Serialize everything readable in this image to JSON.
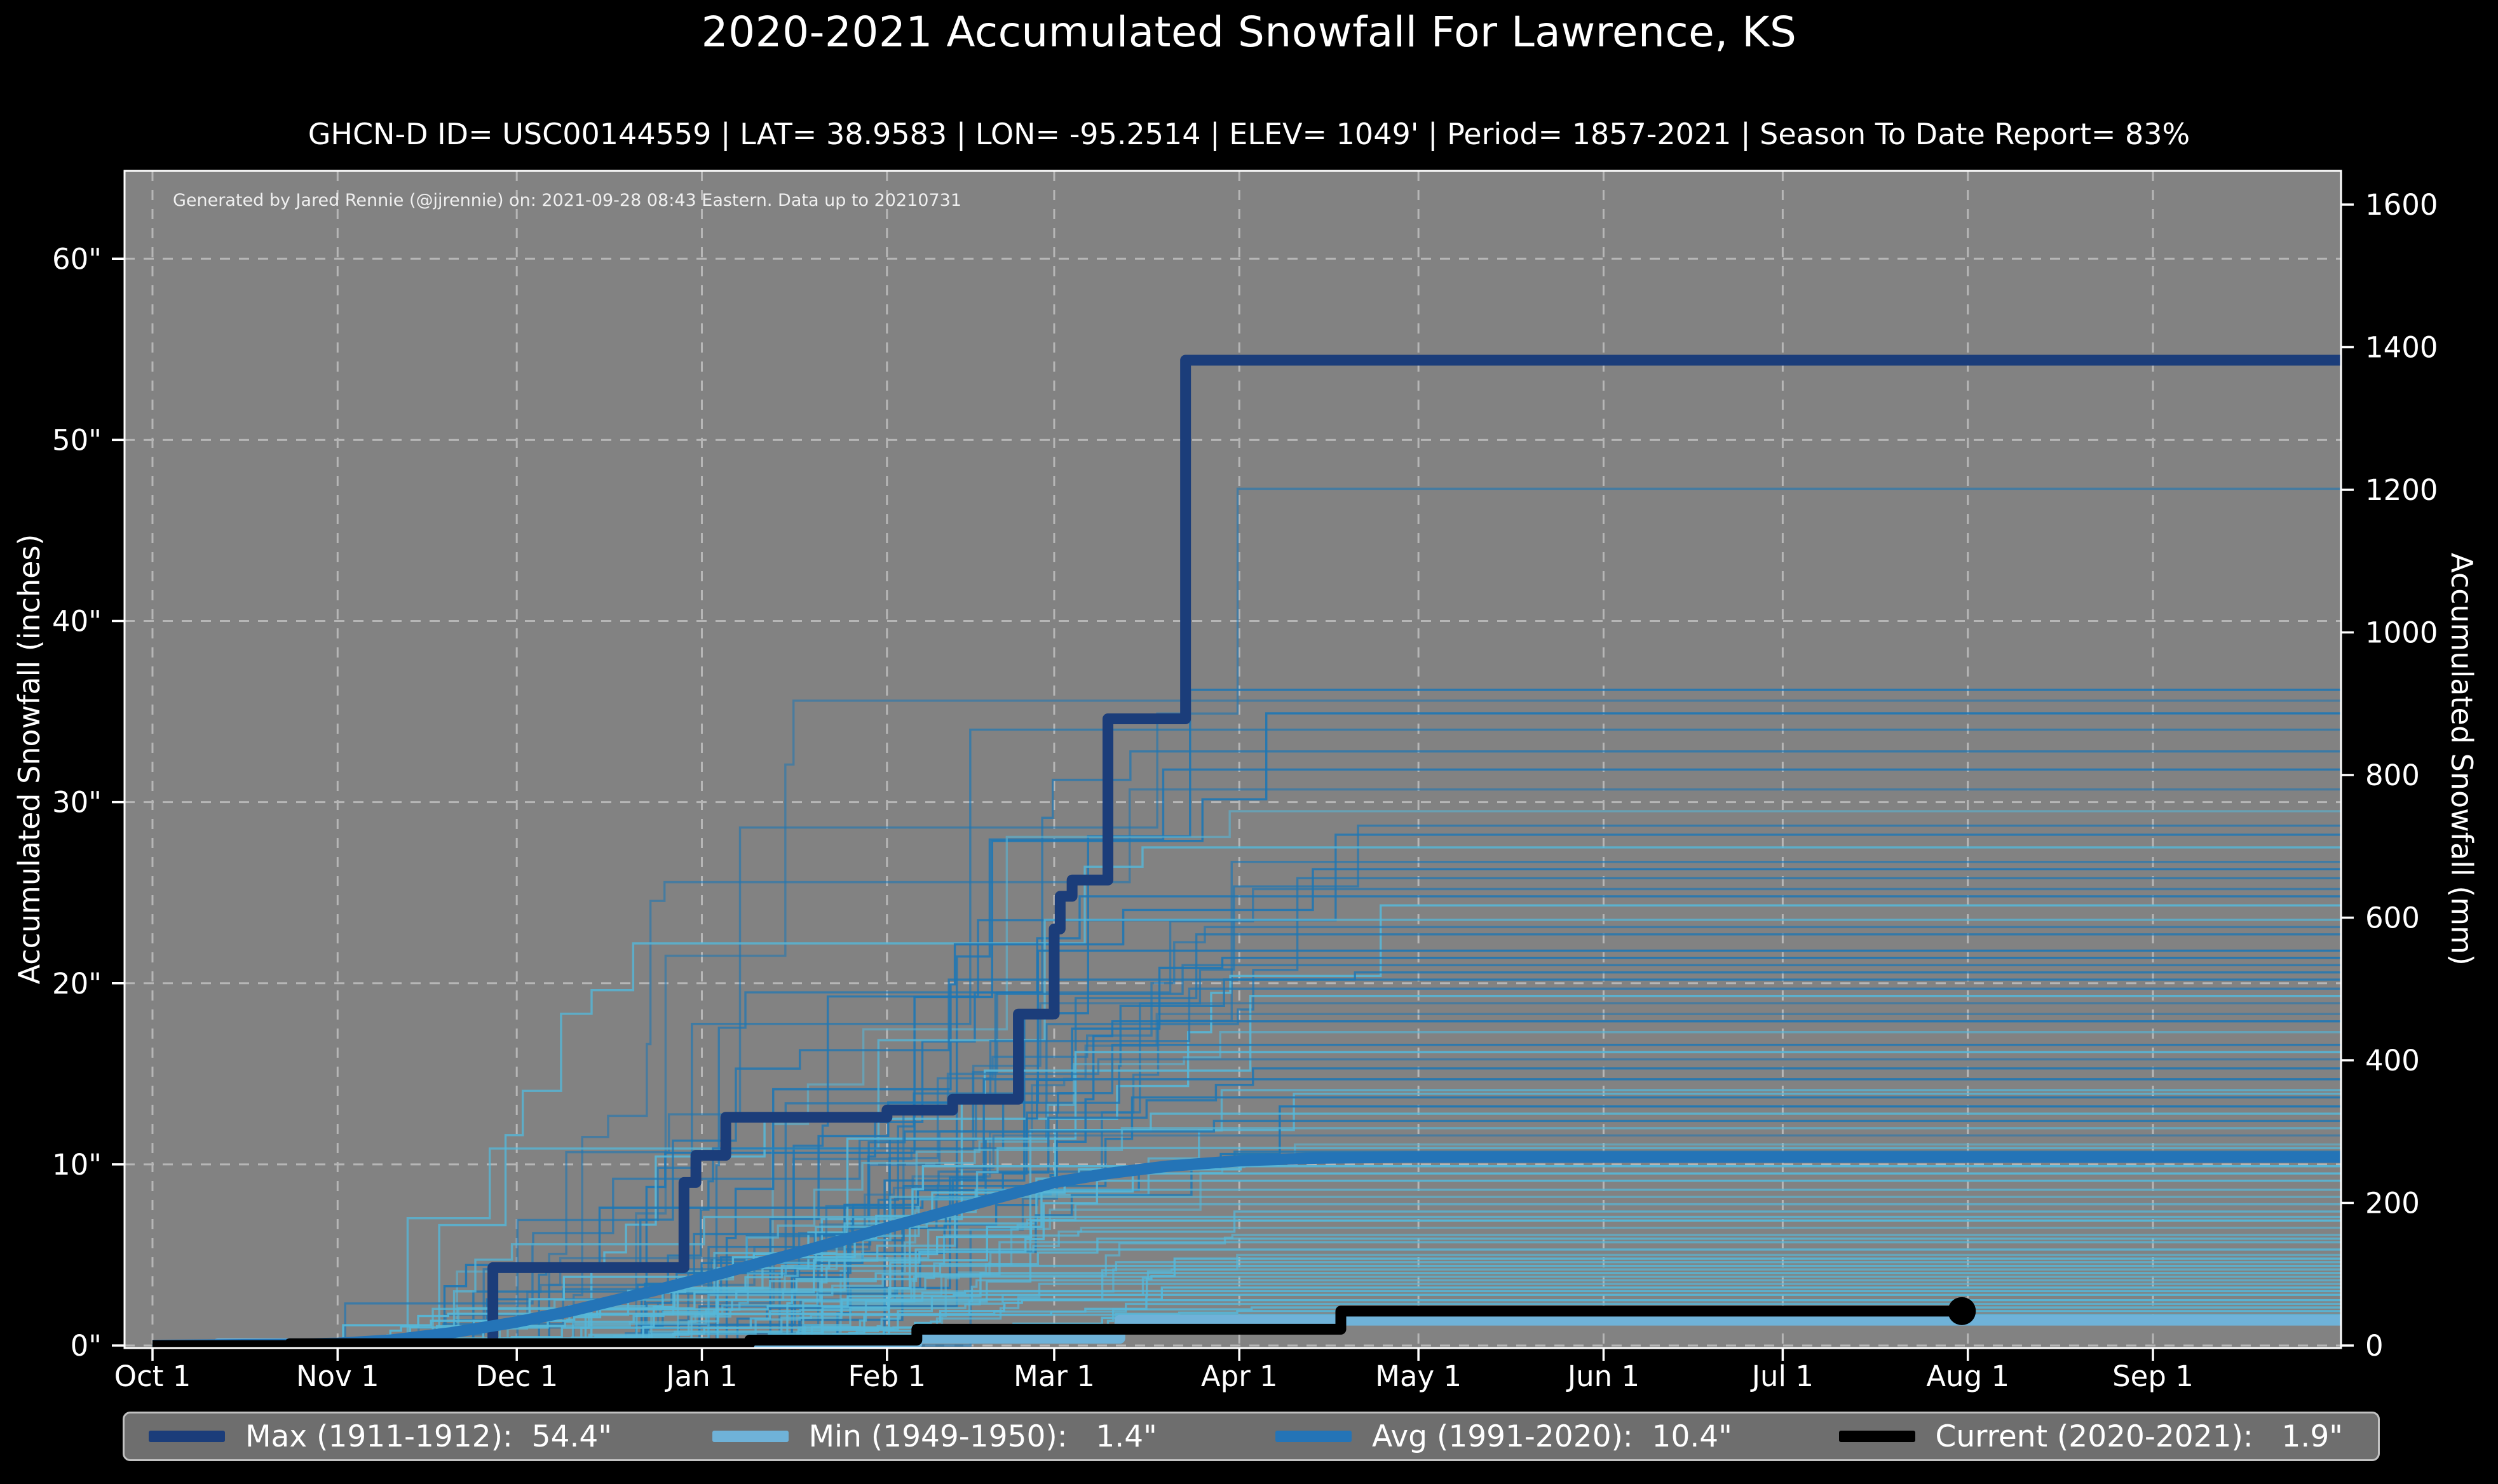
{
  "title": "2020-2021 Accumulated Snowfall For Lawrence, KS",
  "subtitle": "GHCN-D ID= USC00144559 | LAT= 38.9583 | LON= -95.2514 | ELEV= 1049' | Period= 1857-2021 | Season To Date Report= 83%",
  "attribution": "Generated by Jared Rennie (@jjrennie) on: 2021-09-28 08:43 Eastern. Data up to 20210731",
  "colors": {
    "figure_bg": "#000000",
    "plot_bg": "#828282",
    "grid": "#cccccc",
    "spine": "#ffffff",
    "tick": "#ffffff",
    "text": "#ffffff",
    "max": "#1b3d7a",
    "min": "#6fb2d8",
    "avg": "#2474b7",
    "current": "#000000",
    "bg_dark": "#1f77b4",
    "bg_light": "#56b7d8",
    "legend_bg": "#6e6e6e",
    "legend_border": "#c2c2c2"
  },
  "axes": {
    "left_label": "Accumulated Snowfall (inches)",
    "right_label": "Accumulated Snowfall (mm)",
    "xlim_days": [
      -4.68,
      366.5
    ],
    "ylim_inches": [
      -0.14,
      64.85
    ],
    "grid": "on",
    "x_ticks": [
      {
        "label": "Oct 1",
        "day": 0
      },
      {
        "label": "Nov 1",
        "day": 31
      },
      {
        "label": "Dec 1",
        "day": 61
      },
      {
        "label": "Jan 1",
        "day": 92
      },
      {
        "label": "Feb 1",
        "day": 123
      },
      {
        "label": "Mar 1",
        "day": 151
      },
      {
        "label": "Apr 1",
        "day": 182
      },
      {
        "label": "May 1",
        "day": 212
      },
      {
        "label": "Jun 1",
        "day": 243
      },
      {
        "label": "Jul 1",
        "day": 273
      },
      {
        "label": "Aug 1",
        "day": 304
      },
      {
        "label": "Sep 1",
        "day": 335
      }
    ],
    "y_ticks_inches": [
      {
        "label": "0\"",
        "value": 0
      },
      {
        "label": "10\"",
        "value": 10
      },
      {
        "label": "20\"",
        "value": 20
      },
      {
        "label": "30\"",
        "value": 30
      },
      {
        "label": "40\"",
        "value": 40
      },
      {
        "label": "50\"",
        "value": 50
      },
      {
        "label": "60\"",
        "value": 60
      }
    ],
    "y_ticks_mm": [
      {
        "label": "0",
        "value": 0
      },
      {
        "label": "200",
        "value": 200
      },
      {
        "label": "400",
        "value": 400
      },
      {
        "label": "600",
        "value": 600
      },
      {
        "label": "800",
        "value": 800
      },
      {
        "label": "1000",
        "value": 1000
      },
      {
        "label": "1200",
        "value": 1200
      },
      {
        "label": "1400",
        "value": 1400
      },
      {
        "label": "1600",
        "value": 1600
      }
    ]
  },
  "chart_data": {
    "type": "line",
    "x_unit": "day of snow season (day 0 = Oct 1, day 364 = Sep 30)",
    "y_unit_left": "inches",
    "y_unit_right": "mm",
    "series": [
      {
        "name": "Max (1911-1912)",
        "season_total_inches": 54.4,
        "color_key": "max",
        "width": 17,
        "step": true,
        "points": [
          [
            0,
            0
          ],
          [
            57,
            0
          ],
          [
            57,
            4.3
          ],
          [
            89,
            4.3
          ],
          [
            89,
            9.0
          ],
          [
            91,
            9.0
          ],
          [
            91,
            10.5
          ],
          [
            96,
            10.5
          ],
          [
            96,
            12.6
          ],
          [
            123,
            12.6
          ],
          [
            123,
            13.0
          ],
          [
            134,
            13.0
          ],
          [
            134,
            13.6
          ],
          [
            145,
            13.6
          ],
          [
            145,
            18.3
          ],
          [
            151,
            18.3
          ],
          [
            151,
            23.0
          ],
          [
            152,
            23.0
          ],
          [
            152,
            24.8
          ],
          [
            154,
            24.8
          ],
          [
            154,
            25.7
          ],
          [
            160,
            25.7
          ],
          [
            160,
            34.6
          ],
          [
            173,
            34.6
          ],
          [
            173,
            54.4
          ],
          [
            367,
            54.4
          ]
        ]
      },
      {
        "name": "Min (1949-1950)",
        "season_total_inches": 1.4,
        "color_key": "min",
        "width": 17,
        "step": true,
        "points": [
          [
            0,
            0
          ],
          [
            11,
            0
          ],
          [
            11,
            0.1
          ],
          [
            128,
            0.1
          ],
          [
            128,
            0.4
          ],
          [
            162,
            0.4
          ],
          [
            162,
            1.4
          ],
          [
            367,
            1.4
          ]
        ]
      },
      {
        "name": "Avg (1991-2020)",
        "season_total_inches": 10.4,
        "color_key": "avg",
        "width": 18,
        "step": false,
        "points": [
          [
            0,
            0
          ],
          [
            22,
            0.05
          ],
          [
            31,
            0.12
          ],
          [
            40,
            0.3
          ],
          [
            50,
            0.7
          ],
          [
            61,
            1.3
          ],
          [
            70,
            1.9
          ],
          [
            80,
            2.7
          ],
          [
            92,
            3.7
          ],
          [
            100,
            4.4
          ],
          [
            110,
            5.3
          ],
          [
            123,
            6.5
          ],
          [
            132,
            7.3
          ],
          [
            142,
            8.2
          ],
          [
            151,
            9.0
          ],
          [
            160,
            9.5
          ],
          [
            170,
            9.9
          ],
          [
            182,
            10.2
          ],
          [
            195,
            10.35
          ],
          [
            210,
            10.4
          ],
          [
            367,
            10.4
          ]
        ]
      },
      {
        "name": "Current (2020-2021)",
        "season_total_inches": 1.9,
        "color_key": "current",
        "width": 17,
        "step": true,
        "points": [
          [
            0,
            0
          ],
          [
            23,
            0
          ],
          [
            23,
            0.1
          ],
          [
            100,
            0.1
          ],
          [
            100,
            0.3
          ],
          [
            128,
            0.3
          ],
          [
            128,
            0.9
          ],
          [
            199,
            0.9
          ],
          [
            199,
            1.9
          ],
          [
            303,
            1.9
          ]
        ],
        "end_marker": {
          "day": 303,
          "value": 1.9,
          "radius": 22
        }
      }
    ],
    "background_seasons": {
      "description": "Thin step lines: one per historical season 1857-2021; approximate season totals (inches) read from right edge; shade d=darker blue, l=lighter blue",
      "seed": 20210928,
      "line_width": 3.4,
      "entries": [
        [
          47.3,
          "d"
        ],
        [
          36.2,
          "d"
        ],
        [
          35.6,
          "d"
        ],
        [
          34.9,
          "d"
        ],
        [
          34.0,
          "d"
        ],
        [
          32.8,
          "d"
        ],
        [
          31.8,
          "d"
        ],
        [
          30.7,
          "d"
        ],
        [
          29.5,
          "l"
        ],
        [
          28.7,
          "d"
        ],
        [
          28.2,
          "d"
        ],
        [
          27.5,
          "l"
        ],
        [
          26.7,
          "d"
        ],
        [
          26.3,
          "d"
        ],
        [
          25.8,
          "d"
        ],
        [
          25.2,
          "d"
        ],
        [
          24.8,
          "d"
        ],
        [
          24.3,
          "l"
        ],
        [
          23.5,
          "l"
        ],
        [
          23.1,
          "d"
        ],
        [
          22.7,
          "d"
        ],
        [
          21.8,
          "d"
        ],
        [
          21.4,
          "d"
        ],
        [
          21.0,
          "d"
        ],
        [
          20.6,
          "d"
        ],
        [
          20.2,
          "d"
        ],
        [
          19.7,
          "d"
        ],
        [
          19.3,
          "l"
        ],
        [
          18.9,
          "d"
        ],
        [
          18.3,
          "d"
        ],
        [
          17.9,
          "d"
        ],
        [
          17.3,
          "l"
        ],
        [
          16.6,
          "d"
        ],
        [
          16.2,
          "l"
        ],
        [
          15.8,
          "d"
        ],
        [
          15.3,
          "d"
        ],
        [
          14.7,
          "d"
        ],
        [
          14.1,
          "l"
        ],
        [
          13.9,
          "l"
        ],
        [
          13.7,
          "d"
        ],
        [
          13.2,
          "d"
        ],
        [
          12.8,
          "l"
        ],
        [
          12.4,
          "d"
        ],
        [
          12.0,
          "l"
        ],
        [
          11.6,
          "d"
        ],
        [
          11.1,
          "l"
        ],
        [
          10.9,
          "l"
        ],
        [
          10.7,
          "d"
        ],
        [
          10.2,
          "l"
        ],
        [
          9.9,
          "l"
        ],
        [
          9.5,
          "l"
        ],
        [
          9.1,
          "l"
        ],
        [
          8.6,
          "l"
        ],
        [
          8.2,
          "l"
        ],
        [
          7.8,
          "l"
        ],
        [
          7.4,
          "l"
        ],
        [
          7.1,
          "l"
        ],
        [
          6.9,
          "l"
        ],
        [
          6.5,
          "l"
        ],
        [
          6.1,
          "l"
        ],
        [
          5.9,
          "l"
        ],
        [
          5.7,
          "l"
        ],
        [
          5.3,
          "l"
        ],
        [
          5.0,
          "l"
        ],
        [
          4.8,
          "l"
        ],
        [
          4.6,
          "l"
        ],
        [
          4.4,
          "l"
        ],
        [
          4.2,
          "l"
        ],
        [
          4.0,
          "l"
        ],
        [
          3.8,
          "l"
        ],
        [
          3.6,
          "l"
        ],
        [
          3.4,
          "l"
        ],
        [
          3.2,
          "l"
        ],
        [
          3.0,
          "l"
        ],
        [
          2.8,
          "l"
        ],
        [
          2.5,
          "l"
        ],
        [
          2.3,
          "l"
        ],
        [
          2.1,
          "l"
        ],
        [
          1.9,
          "l"
        ],
        [
          1.7,
          "l"
        ]
      ]
    }
  },
  "legend": {
    "items": [
      {
        "label": "Max (1911-1912):  54.4\"",
        "key": "max"
      },
      {
        "label": "Min (1949-1950):   1.4\"",
        "key": "min"
      },
      {
        "label": "Avg (1991-2020):  10.4\"",
        "key": "avg"
      },
      {
        "label": "Current (2020-2021):   1.9\"",
        "key": "current"
      }
    ]
  }
}
